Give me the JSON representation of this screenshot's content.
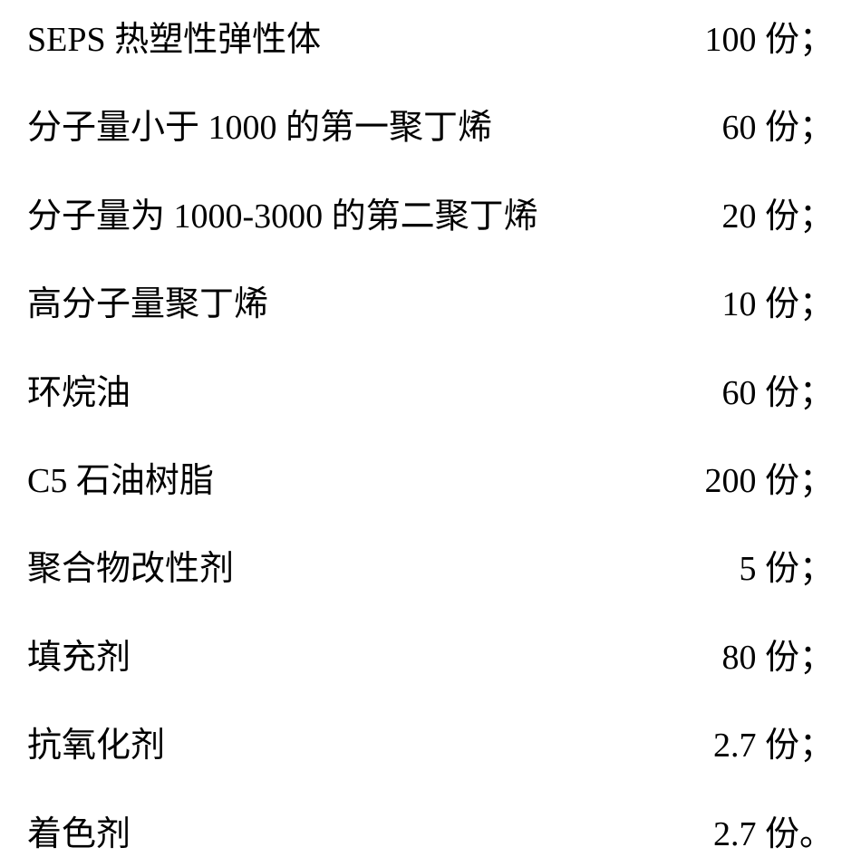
{
  "rows": [
    {
      "label": "SEPS 热塑性弹性体",
      "value": "100 份；"
    },
    {
      "label": "分子量小于 1000 的第一聚丁烯",
      "value": "60 份；"
    },
    {
      "label": "分子量为 1000-3000 的第二聚丁烯",
      "value": "20 份；"
    },
    {
      "label": "高分子量聚丁烯",
      "value": "10 份；"
    },
    {
      "label": "环烷油",
      "value": "60 份；"
    },
    {
      "label": "C5 石油树脂",
      "value": "200 份；"
    },
    {
      "label": "聚合物改性剂",
      "value": "5 份；"
    },
    {
      "label": "填充剂",
      "value": "80 份；"
    },
    {
      "label": "抗氧化剂",
      "value": "2.7 份；"
    },
    {
      "label": "着色剂",
      "value": "2.7 份。"
    }
  ],
  "style": {
    "background_color": "#ffffff",
    "text_color": "#000000",
    "font_size": 38,
    "row_spacing": 48
  }
}
